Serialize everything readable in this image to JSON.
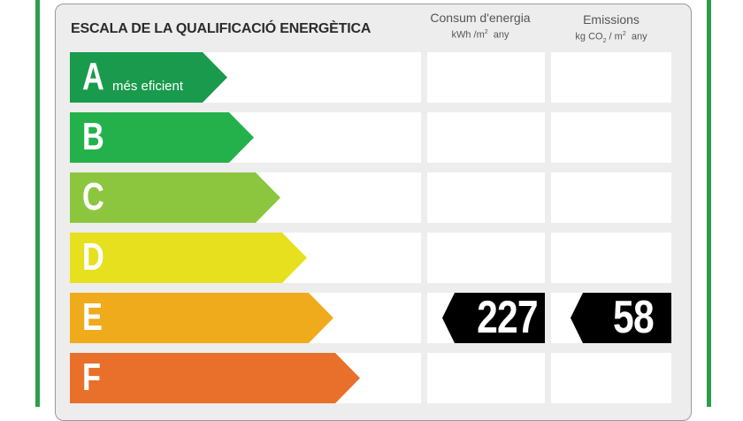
{
  "title": "ESCALA DE LA QUALIFICACIÓ ENERGÈTICA",
  "columns": {
    "energy": {
      "heading": "Consum d'energia",
      "unit_main": "kWh /m",
      "unit_sup": "2",
      "unit_tail": "any"
    },
    "emissions": {
      "heading": "Emissions",
      "unit_main": "kg CO",
      "unit_sub": "2",
      "unit_mid": " / m",
      "unit_sup": "2",
      "unit_tail": "any"
    }
  },
  "classes": [
    {
      "letter": "A",
      "label": "més eficient",
      "color": "#1a9a4c"
    },
    {
      "letter": "B",
      "label": "",
      "color": "#24b14b"
    },
    {
      "letter": "C",
      "label": "",
      "color": "#8cc63f"
    },
    {
      "letter": "D",
      "label": "",
      "color": "#e6e01e"
    },
    {
      "letter": "E",
      "label": "",
      "color": "#f0ab1c"
    },
    {
      "letter": "F",
      "label": "",
      "color": "#e8702a"
    }
  ],
  "rating": {
    "class": "E",
    "energy_value": "227",
    "emissions_value": "58"
  },
  "colors": {
    "frame": "#2e9d4a",
    "panel": "#ededed",
    "marker": "#000000"
  }
}
